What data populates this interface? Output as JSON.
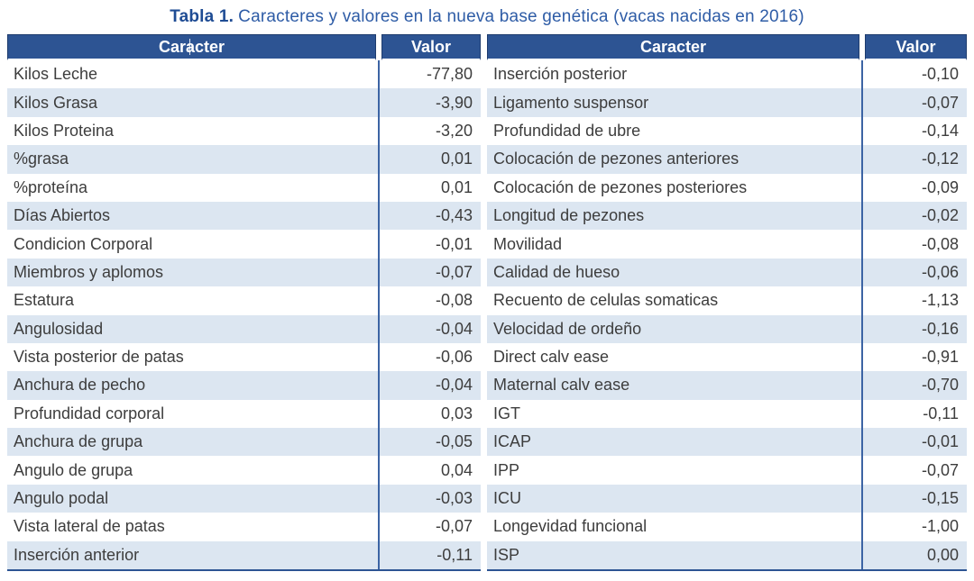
{
  "title": {
    "label": "Tabla 1.",
    "caption": "Caracteres y valores en la nueva base genética (vacas nacidas en 2016)"
  },
  "columns": {
    "caracter": "Caracter",
    "valor": "Valor"
  },
  "left_rows": [
    {
      "caracter": "Kilos Leche",
      "valor": "-77,80"
    },
    {
      "caracter": "Kilos Grasa",
      "valor": "-3,90"
    },
    {
      "caracter": "Kilos Proteina",
      "valor": "-3,20"
    },
    {
      "caracter": "%grasa",
      "valor": "0,01"
    },
    {
      "caracter": "%proteína",
      "valor": "0,01"
    },
    {
      "caracter": "Días Abiertos",
      "valor": "-0,43"
    },
    {
      "caracter": "Condicion Corporal",
      "valor": "-0,01"
    },
    {
      "caracter": "Miembros y aplomos",
      "valor": "-0,07"
    },
    {
      "caracter": "Estatura",
      "valor": "-0,08"
    },
    {
      "caracter": "Angulosidad",
      "valor": "-0,04"
    },
    {
      "caracter": "Vista posterior de patas",
      "valor": "-0,06"
    },
    {
      "caracter": "Anchura de pecho",
      "valor": "-0,04"
    },
    {
      "caracter": "Profundidad corporal",
      "valor": "0,03"
    },
    {
      "caracter": "Anchura de grupa",
      "valor": "-0,05"
    },
    {
      "caracter": "Angulo de grupa",
      "valor": "0,04"
    },
    {
      "caracter": "Angulo podal",
      "valor": "-0,03"
    },
    {
      "caracter": "Vista lateral de patas",
      "valor": "-0,07"
    },
    {
      "caracter": "Inserción anterior",
      "valor": "-0,11"
    }
  ],
  "right_rows": [
    {
      "caracter": "Inserción posterior",
      "valor": "-0,10"
    },
    {
      "caracter": "Ligamento suspensor",
      "valor": "-0,07"
    },
    {
      "caracter": "Profundidad de ubre",
      "valor": "-0,14"
    },
    {
      "caracter": "Colocación de pezones anteriores",
      "valor": "-0,12"
    },
    {
      "caracter": "Colocación de pezones posteriores",
      "valor": "-0,09"
    },
    {
      "caracter": "Longitud de pezones",
      "valor": "-0,02"
    },
    {
      "caracter": "Movilidad",
      "valor": "-0,08"
    },
    {
      "caracter": "Calidad de hueso",
      "valor": "-0,06"
    },
    {
      "caracter": "Recuento de celulas somaticas",
      "valor": "-1,13"
    },
    {
      "caracter": "Velocidad de ordeño",
      "valor": "-0,16"
    },
    {
      "caracter": "Direct calv ease",
      "valor": "-0,91"
    },
    {
      "caracter": "Maternal calv ease",
      "valor": "-0,70"
    },
    {
      "caracter": "IGT",
      "valor": "-0,11"
    },
    {
      "caracter": "ICAP",
      "valor": "-0,01"
    },
    {
      "caracter": "IPP",
      "valor": "-0,07"
    },
    {
      "caracter": "ICU",
      "valor": "-0,15"
    },
    {
      "caracter": "Longevidad funcional",
      "valor": "-1,00"
    },
    {
      "caracter": "ISP",
      "valor": "0,00"
    }
  ],
  "colors": {
    "header_bg": "#2D5493",
    "header_border": "#1E3C6E",
    "header_text": "#FFFFFF",
    "row_stripe": "#DCE6F1",
    "divider": "#3C64A4",
    "table_border": "#2D5493",
    "title_label": "#1F4C94",
    "title_text": "#2E5CA6",
    "body_text": "#3D3D3D"
  }
}
